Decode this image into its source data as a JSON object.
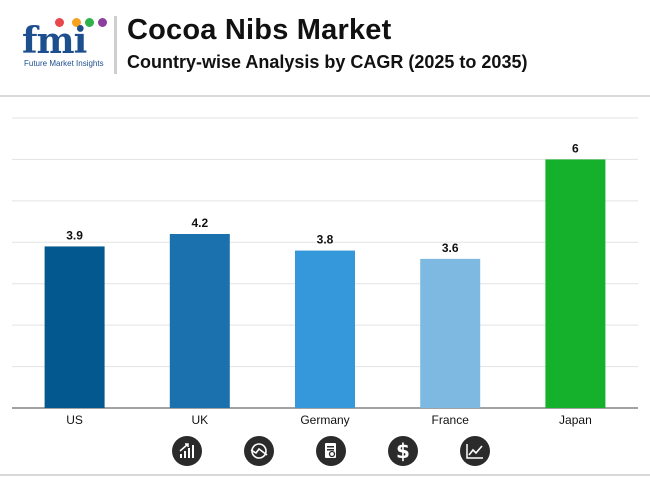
{
  "header": {
    "logo_text": "fmi",
    "logo_subtext": "Future Market Insights",
    "title": "Cocoa Nibs Market",
    "subtitle": "Country-wise Analysis by CAGR (2025 to 2035)"
  },
  "chart_data": {
    "type": "bar",
    "title": "Cocoa Nibs Market",
    "subtitle": "Country-wise Analysis by CAGR (2025 to 2035)",
    "categories": [
      "US",
      "UK",
      "Germany",
      "France",
      "Japan"
    ],
    "values": [
      3.9,
      4.2,
      3.8,
      3.6,
      6
    ],
    "value_labels": [
      "3.9",
      "4.2",
      "3.8",
      "3.6",
      "6"
    ],
    "colors": [
      "#03588f",
      "#1b71ae",
      "#3498da",
      "#7eb9e1",
      "#15b12d"
    ],
    "xlabel": "",
    "ylabel": "",
    "ylim": [
      0,
      7
    ],
    "grid": true,
    "legend": "none"
  },
  "footer_icons": [
    "bar-growth-icon",
    "globe-trend-icon",
    "report-search-icon",
    "dollar-icon",
    "line-chart-icon"
  ],
  "logo_dot_colors": [
    "#e8474c",
    "#f6a21e",
    "#2fb24c",
    "#8b3f9d"
  ]
}
